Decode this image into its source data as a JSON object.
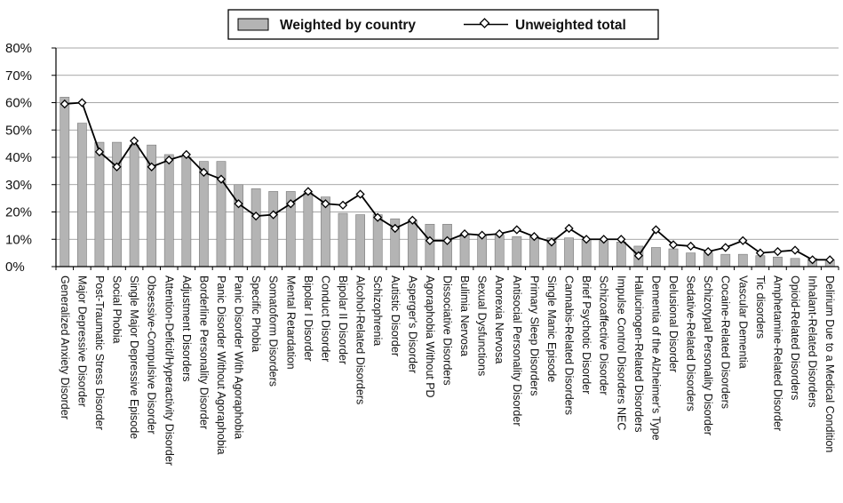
{
  "chart_data": {
    "type": "bar",
    "title": "",
    "xlabel": "",
    "ylabel": "",
    "ylim": [
      0,
      80
    ],
    "y_tick_labels": [
      "0%",
      "10%",
      "20%",
      "30%",
      "40%",
      "50%",
      "60%",
      "70%",
      "80%"
    ],
    "grid": "horizontal",
    "legend_position": "top-center",
    "categories": [
      "Generalized Anxiety Disorder",
      "Major Depressive Disorder",
      "Post-Traumatic Stress Disorder",
      "Social Phobia",
      "Single Major Depressive Episode",
      "Obsessive-Compulsive Disorder",
      "Attention-Deficit/Hyperactivity Disorder",
      "Adjustment Disorders",
      "Borderline Personality Disorder",
      "Panic Disorder Without Agoraphobia",
      "Panic Disorder With Agoraphobia",
      "Specific Phobia",
      "Somatoform Disorders",
      "Mental Retardation",
      "Bipolar I Disorder",
      "Conduct Disorder",
      "Bipolar II Disorder",
      "Alcohol-Related Disorders",
      "Schizophrenia",
      "Autistic Disorder",
      "Asperger's Disorder",
      "Agoraphobia Without PD",
      "Dissociative Disorders",
      "Bulimia Nervosa",
      "Sexual Dysfunctions",
      "Anorexia Nervosa",
      "Antisocial Personality Disorder",
      "Primary Sleep Disorders",
      "Single Manic Episode",
      "Cannabis-Related Disorders",
      "Brief Psychotic Disorder",
      "Schizoaffective Disorder",
      "Impulse Control Disorders NEC",
      "Hallucinogen-Related Disorders",
      "Dementia of the Alzheimer's Type",
      "Delusional Disorder",
      "Sedative-Related Disorders",
      "Schizotypal Personality Disorder",
      "Cocaine-Related Disorders",
      "Vascular Dementia",
      "Tic disorders",
      "Amphetamine-Related Disorder",
      "Opioid-Related Disorders",
      "Inhalant-Related Disorders",
      "Delirium Due to a Medical Condition"
    ],
    "series": [
      {
        "name": "Weighted by country",
        "type": "bar",
        "color": "#b4b4b4",
        "values": [
          62,
          52.5,
          45.5,
          45.5,
          44.5,
          44.5,
          41,
          40,
          38.5,
          38.5,
          30,
          28.5,
          27.5,
          27.5,
          27,
          25.5,
          19.5,
          19,
          19,
          17.5,
          17,
          15.5,
          15.5,
          12,
          11.5,
          11.5,
          11,
          11,
          10.5,
          10.5,
          10,
          9.5,
          9,
          7.5,
          7,
          6.5,
          5,
          5,
          4.5,
          4.5,
          4,
          3.5,
          3,
          3,
          2.5
        ]
      },
      {
        "name": "Unweighted total",
        "type": "line",
        "color": "#000000",
        "values": [
          59.5,
          60,
          42,
          36.5,
          46,
          36.5,
          39,
          41,
          34.5,
          32,
          23,
          18.5,
          19,
          23,
          27.5,
          23,
          22.5,
          26.5,
          18,
          14,
          17,
          9.5,
          9.5,
          12,
          11.5,
          12,
          13.5,
          11,
          9,
          14,
          10,
          10,
          10,
          4,
          13.5,
          8,
          7.5,
          5.5,
          7,
          9.5,
          5,
          5.5,
          6,
          2.5,
          2.5
        ]
      }
    ]
  }
}
